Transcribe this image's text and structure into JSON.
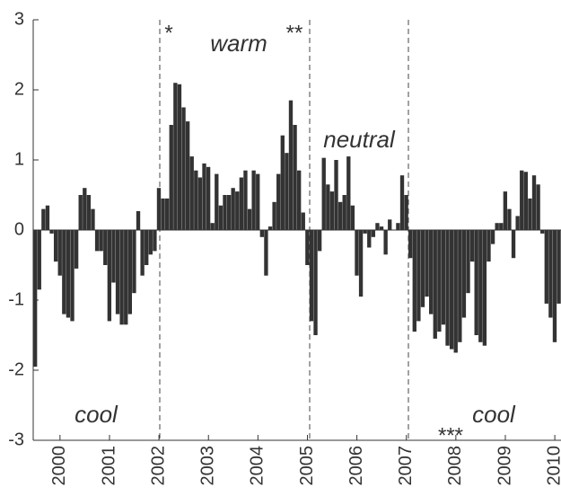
{
  "chart_data": {
    "type": "bar",
    "color": "#333333",
    "ylim": [
      -3,
      3
    ],
    "yticks": [
      -3,
      -2,
      -1,
      0,
      1,
      2,
      3
    ],
    "annotations": [
      "warm",
      "neutral",
      "cool",
      "cool",
      "*",
      "**",
      "***"
    ],
    "categories": [
      null,
      null,
      null,
      null,
      null,
      null,
      "2000",
      null,
      null,
      null,
      null,
      null,
      null,
      null,
      null,
      null,
      null,
      null,
      "2001",
      null,
      null,
      null,
      null,
      null,
      null,
      null,
      null,
      null,
      null,
      null,
      "2002",
      null,
      null,
      null,
      null,
      null,
      null,
      null,
      null,
      null,
      null,
      null,
      "2003",
      null,
      null,
      null,
      null,
      null,
      null,
      null,
      null,
      null,
      null,
      null,
      "2004",
      null,
      null,
      null,
      null,
      null,
      null,
      null,
      null,
      null,
      null,
      null,
      "2005",
      null,
      null,
      null,
      null,
      null,
      null,
      null,
      null,
      null,
      null,
      null,
      "2006",
      null,
      null,
      null,
      null,
      null,
      null,
      null,
      null,
      null,
      null,
      null,
      "2007",
      null,
      null,
      null,
      null,
      null,
      null,
      null,
      null,
      null,
      null,
      null,
      "2008",
      null,
      null,
      null,
      null,
      null,
      null,
      null,
      null,
      null,
      null,
      null,
      "2009",
      null,
      null,
      null,
      null,
      null,
      null,
      null,
      null,
      null,
      null,
      null,
      "2010",
      null
    ],
    "values": [
      -1.95,
      -0.85,
      0.3,
      0.35,
      -0.05,
      -0.45,
      -0.65,
      -1.2,
      -1.25,
      -1.3,
      -0.55,
      0.5,
      0.6,
      0.5,
      0.3,
      -0.3,
      -0.3,
      -0.5,
      -1.3,
      -0.75,
      -1.2,
      -1.35,
      -1.35,
      -1.2,
      -0.9,
      0.27,
      -0.65,
      -0.5,
      -0.35,
      -0.3,
      0.6,
      0.45,
      0.45,
      1.5,
      2.1,
      2.08,
      1.75,
      1.55,
      1.05,
      0.85,
      0.75,
      0.95,
      0.9,
      0.1,
      0.8,
      0.35,
      0.5,
      0.5,
      0.6,
      0.55,
      0.75,
      0.85,
      0.3,
      0.85,
      0.8,
      -0.1,
      -0.65,
      0.05,
      0.4,
      0.8,
      1.35,
      1.1,
      1.85,
      1.5,
      0.85,
      0.25,
      -0.5,
      -1.3,
      -1.5,
      -0.3,
      1.03,
      0.65,
      0.55,
      1.0,
      0.4,
      0.5,
      1.05,
      0.35,
      -0.65,
      -0.95,
      -0.05,
      -0.25,
      -0.1,
      0.1,
      0.05,
      -0.35,
      0.15,
      0.0,
      0.1,
      0.78,
      0.5,
      -0.4,
      -1.45,
      -1.3,
      -1.1,
      -0.95,
      -1.2,
      -1.55,
      -1.45,
      -1.35,
      -1.65,
      -1.7,
      -1.75,
      -1.6,
      -1.25,
      -0.9,
      -0.45,
      -1.5,
      -1.6,
      -1.65,
      -0.45,
      -0.2,
      0.1,
      0.1,
      0.55,
      0.3,
      -0.4,
      0.2,
      0.85,
      0.83,
      0.45,
      0.78,
      0.65,
      -0.05,
      -1.05,
      -1.25,
      -1.6,
      -1.05
    ]
  }
}
